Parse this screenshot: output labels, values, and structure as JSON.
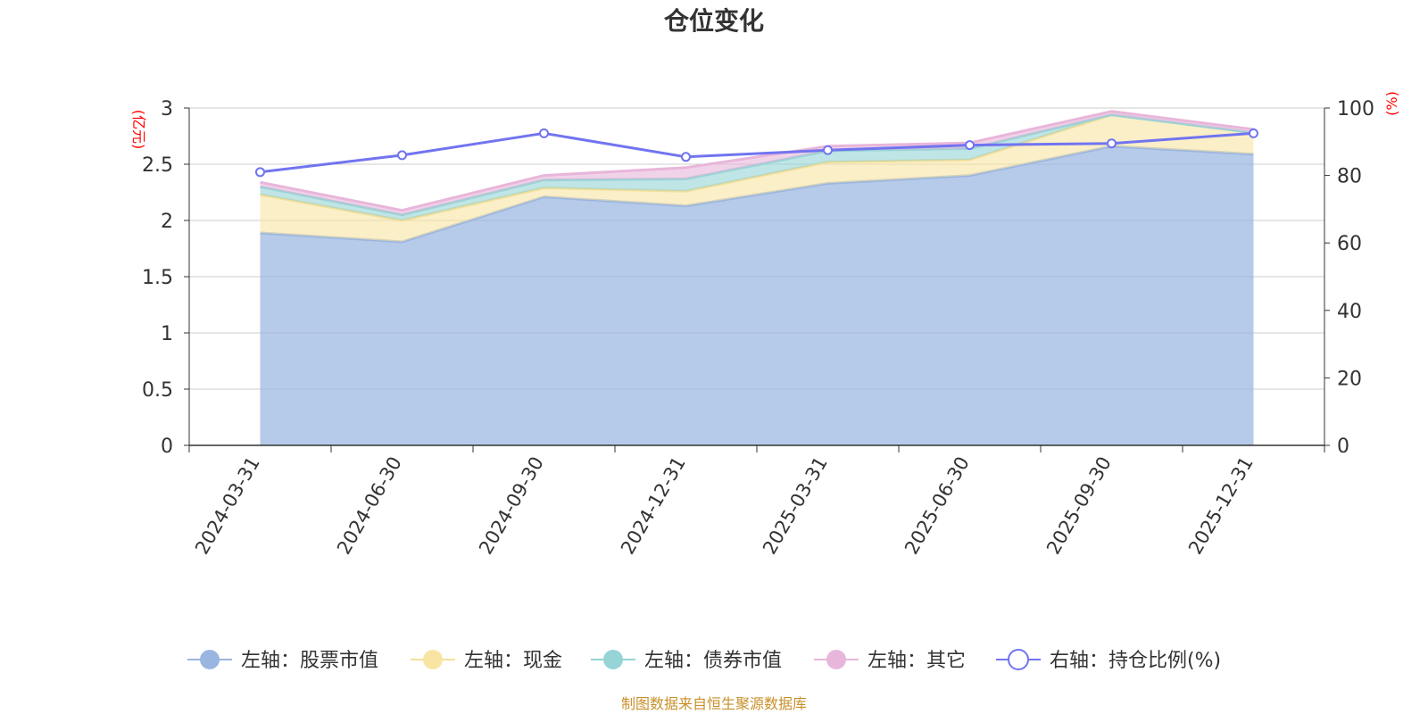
{
  "chart_data": {
    "type": "area",
    "title": "仓位变化",
    "categories": [
      "2024-03-31",
      "2024-06-30",
      "2024-09-30",
      "2024-12-31",
      "2025-03-31",
      "2025-06-30",
      "2025-09-30",
      "2025-12-31"
    ],
    "left_axis": {
      "unit": "(亿元)",
      "ylim": [
        0,
        3
      ],
      "ticks": [
        0,
        0.5,
        1,
        1.5,
        2,
        2.5,
        3
      ],
      "tick_labels": [
        "0",
        "0.5",
        "1",
        "1.5",
        "2",
        "2.5",
        "3"
      ]
    },
    "right_axis": {
      "unit": "(%)",
      "ylim": [
        0,
        100
      ],
      "ticks": [
        0,
        20,
        40,
        60,
        80,
        100
      ],
      "tick_labels": [
        "0",
        "20",
        "40",
        "60",
        "80",
        "100"
      ]
    },
    "series": [
      {
        "name": "左轴：股票市值",
        "axis": "left",
        "kind": "stacked-area",
        "color": "#9ab5e0",
        "values": [
          1.89,
          1.81,
          2.21,
          2.13,
          2.33,
          2.4,
          2.66,
          2.59
        ]
      },
      {
        "name": "左轴：现金",
        "axis": "left",
        "kind": "stacked-area",
        "color": "#f8e5a3",
        "values": [
          0.34,
          0.19,
          0.08,
          0.13,
          0.19,
          0.14,
          0.28,
          0.19
        ]
      },
      {
        "name": "左轴：债券市值",
        "axis": "left",
        "kind": "stacked-area",
        "color": "#96d4d6",
        "values": [
          0.07,
          0.05,
          0.07,
          0.11,
          0.1,
          0.1,
          0.0,
          0.0
        ]
      },
      {
        "name": "左轴：其它",
        "axis": "left",
        "kind": "stacked-area",
        "color": "#e8b6da",
        "values": [
          0.04,
          0.04,
          0.04,
          0.1,
          0.04,
          0.05,
          0.03,
          0.03
        ]
      },
      {
        "name": "右轴：持仓比例(%)",
        "axis": "right",
        "kind": "line",
        "color": "#7174f0",
        "values": [
          81,
          86,
          92.5,
          85.5,
          87.5,
          89,
          89.5,
          92.5
        ]
      }
    ],
    "legend_position": "bottom",
    "grid": true
  },
  "source_text": "制图数据来自恒生聚源数据库"
}
